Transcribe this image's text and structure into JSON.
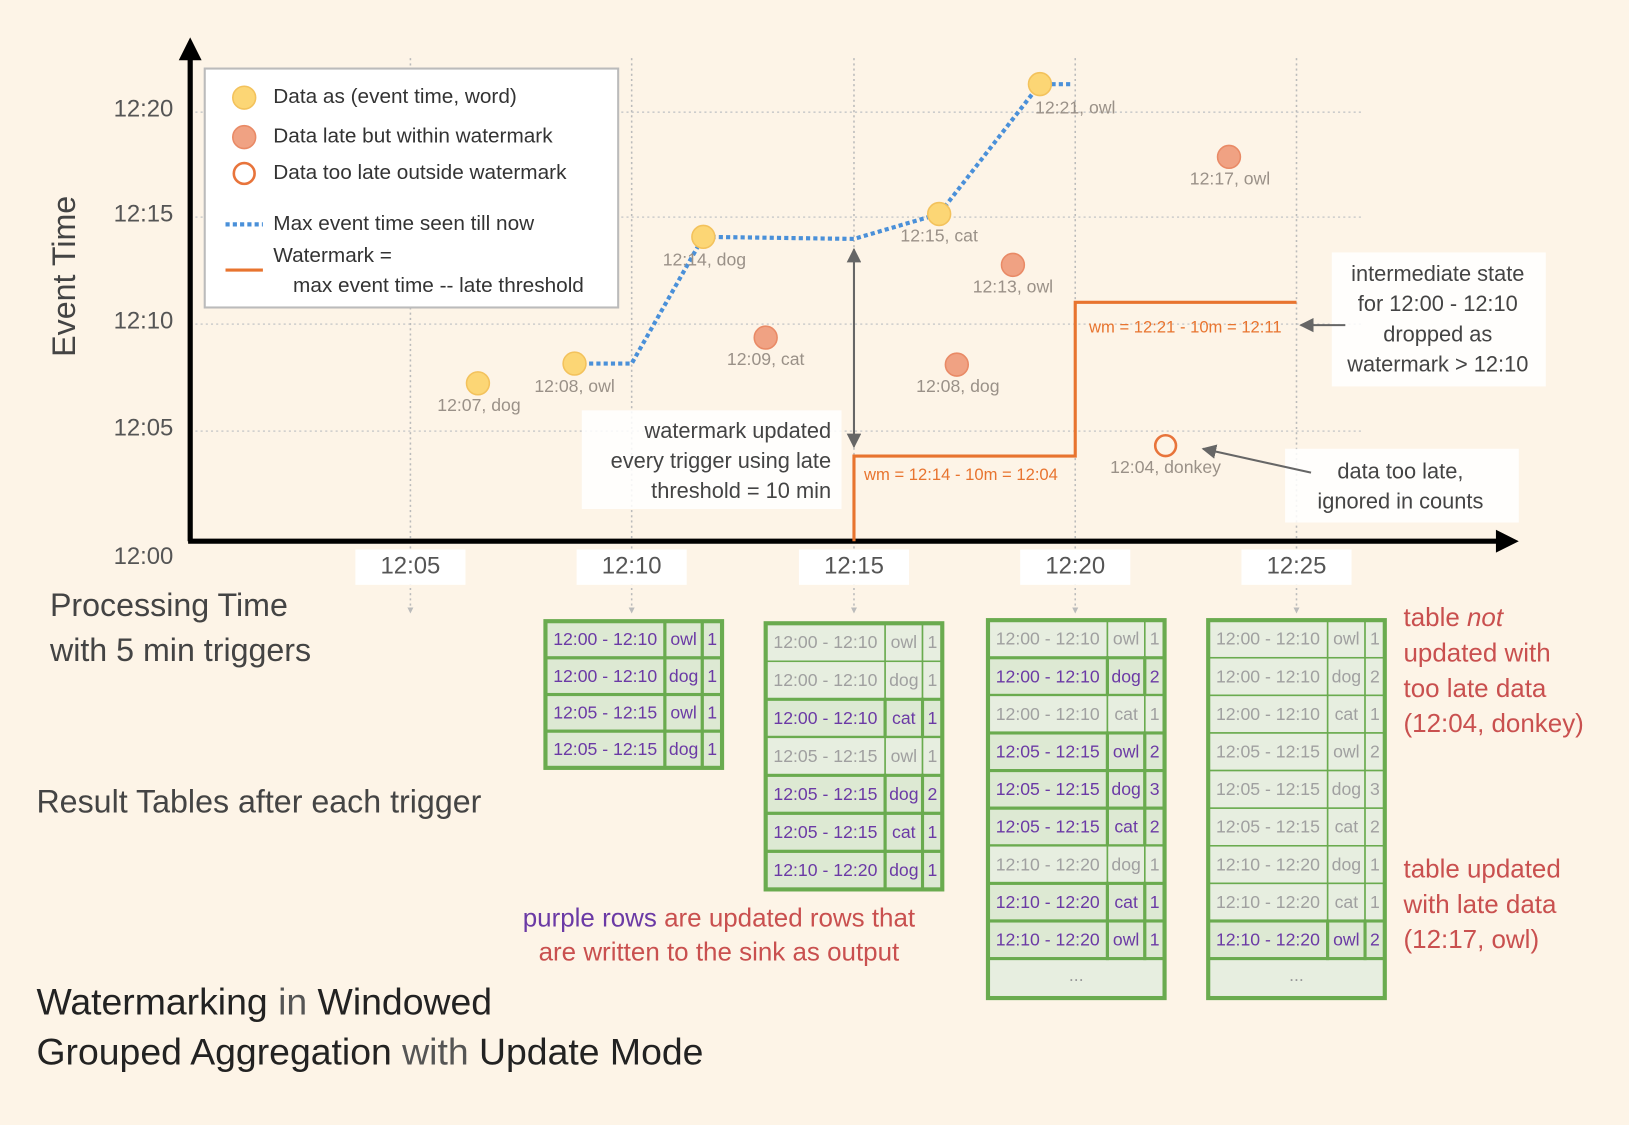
{
  "axes": {
    "y_label": "Event Time",
    "y_ticks": [
      "12:00",
      "12:05",
      "12:10",
      "12:15",
      "12:20"
    ],
    "x_ticks": [
      "12:05",
      "12:10",
      "12:15",
      "12:20",
      "12:25"
    ],
    "x_label": [
      "Processing Time",
      "with 5 min triggers"
    ]
  },
  "legend": {
    "items": [
      {
        "label": "Data as (event time, word)",
        "kind": "on-time"
      },
      {
        "label": "Data late but within watermark",
        "kind": "late"
      },
      {
        "label": "Data too late outside watermark",
        "kind": "too-late"
      },
      {
        "label": "Max event time seen till now",
        "kind": "max-line"
      },
      {
        "label": "Watermark =",
        "kind": "watermark-line"
      },
      {
        "label": "max event time -- late threshold",
        "kind": "continuation"
      }
    ]
  },
  "points": [
    {
      "label": "12:07, dog",
      "kind": "on-time"
    },
    {
      "label": "12:08, owl",
      "kind": "on-time"
    },
    {
      "label": "12:14, dog",
      "kind": "on-time"
    },
    {
      "label": "12:15, cat",
      "kind": "on-time"
    },
    {
      "label": "12:21, owl",
      "kind": "on-time"
    },
    {
      "label": "12:09, cat",
      "kind": "late"
    },
    {
      "label": "12:13, owl",
      "kind": "late"
    },
    {
      "label": "12:08, dog",
      "kind": "late"
    },
    {
      "label": "12:17, owl",
      "kind": "late"
    },
    {
      "label": "12:04, donkey",
      "kind": "too-late"
    }
  ],
  "watermark_labels": [
    "wm = 12:14 - 10m = 12:04",
    "wm = 12:21 - 10m = 12:11"
  ],
  "notes": {
    "watermark_updated": [
      "watermark updated",
      "every trigger using late",
      "threshold = 10 min"
    ],
    "intermediate_state": [
      "intermediate state",
      "for 12:00 - 12:10",
      "dropped as",
      "watermark > 12:10"
    ],
    "too_late": [
      "data too late,",
      "ignored in counts"
    ]
  },
  "result_tables_label": "Result Tables after each trigger",
  "tables": [
    {
      "rows": [
        {
          "cells": [
            "12:00 - 12:10",
            "owl",
            1
          ],
          "updated": true
        },
        {
          "cells": [
            "12:00 - 12:10",
            "dog",
            1
          ],
          "updated": true
        },
        {
          "cells": [
            "12:05 - 12:15",
            "owl",
            1
          ],
          "updated": true
        },
        {
          "cells": [
            "12:05 - 12:15",
            "dog",
            1
          ],
          "updated": true
        }
      ]
    },
    {
      "rows": [
        {
          "cells": [
            "12:00 - 12:10",
            "owl",
            1
          ],
          "updated": false
        },
        {
          "cells": [
            "12:00 - 12:10",
            "dog",
            1
          ],
          "updated": false
        },
        {
          "cells": [
            "12:00 - 12:10",
            "cat",
            1
          ],
          "updated": true
        },
        {
          "cells": [
            "12:05 - 12:15",
            "owl",
            1
          ],
          "updated": false
        },
        {
          "cells": [
            "12:05 - 12:15",
            "dog",
            2
          ],
          "updated": true
        },
        {
          "cells": [
            "12:05 - 12:15",
            "cat",
            1
          ],
          "updated": true
        },
        {
          "cells": [
            "12:10 - 12:20",
            "dog",
            1
          ],
          "updated": true
        }
      ]
    },
    {
      "rows": [
        {
          "cells": [
            "12:00 - 12:10",
            "owl",
            1
          ],
          "updated": false
        },
        {
          "cells": [
            "12:00 - 12:10",
            "dog",
            2
          ],
          "updated": true
        },
        {
          "cells": [
            "12:00 - 12:10",
            "cat",
            1
          ],
          "updated": false
        },
        {
          "cells": [
            "12:05 - 12:15",
            "owl",
            2
          ],
          "updated": true
        },
        {
          "cells": [
            "12:05 - 12:15",
            "dog",
            3
          ],
          "updated": true
        },
        {
          "cells": [
            "12:05 - 12:15",
            "cat",
            2
          ],
          "updated": true
        },
        {
          "cells": [
            "12:10 - 12:20",
            "dog",
            1
          ],
          "updated": false
        },
        {
          "cells": [
            "12:10 - 12:20",
            "cat",
            1
          ],
          "updated": true
        },
        {
          "cells": [
            "12:10 - 12:20",
            "owl",
            1
          ],
          "updated": true
        }
      ],
      "more": "..."
    },
    {
      "rows": [
        {
          "cells": [
            "12:00 - 12:10",
            "owl",
            1
          ],
          "updated": false
        },
        {
          "cells": [
            "12:00 - 12:10",
            "dog",
            2
          ],
          "updated": false
        },
        {
          "cells": [
            "12:00 - 12:10",
            "cat",
            1
          ],
          "updated": false
        },
        {
          "cells": [
            "12:05 - 12:15",
            "owl",
            2
          ],
          "updated": false
        },
        {
          "cells": [
            "12:05 - 12:15",
            "dog",
            3
          ],
          "updated": false
        },
        {
          "cells": [
            "12:05 - 12:15",
            "cat",
            2
          ],
          "updated": false
        },
        {
          "cells": [
            "12:10 - 12:20",
            "dog",
            1
          ],
          "updated": false
        },
        {
          "cells": [
            "12:10 - 12:20",
            "cat",
            1
          ],
          "updated": false
        },
        {
          "cells": [
            "12:10 - 12:20",
            "owl",
            2
          ],
          "updated": true
        }
      ],
      "more": "..."
    }
  ],
  "table_notes": {
    "not_updated": [
      [
        "table",
        "not"
      ],
      [
        "updated with"
      ],
      [
        "too late data"
      ],
      [
        "(12:04, donkey)"
      ]
    ],
    "updated": [
      [
        "table updated"
      ],
      [
        "with late data"
      ],
      [
        "(12:17, owl)"
      ]
    ]
  },
  "caption": [
    [
      "purple rows",
      "are updated rows that"
    ],
    [
      "are written to the sink as output"
    ]
  ],
  "title": [
    [
      "Watermarking",
      "in",
      "Windowed"
    ],
    [
      "Grouped Aggregation",
      "with",
      "Update Mode"
    ]
  ]
}
